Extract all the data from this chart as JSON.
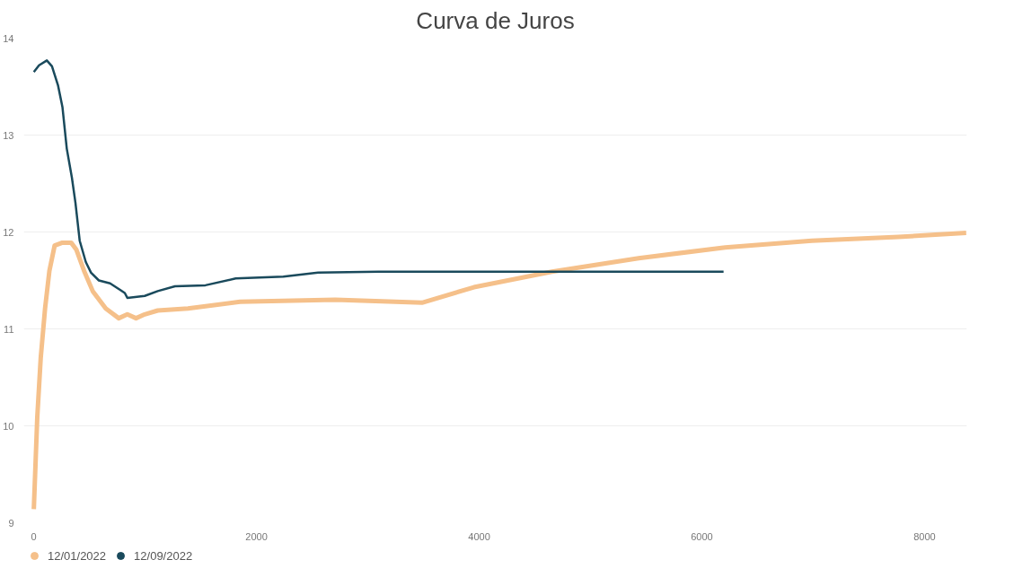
{
  "chart_data": {
    "type": "line",
    "title": "Curva de Juros",
    "xlim": [
      -90,
      8380
    ],
    "ylim": [
      9,
      14
    ],
    "xticks": [
      0,
      2000,
      4000,
      6000,
      8000
    ],
    "yticks": [
      9,
      10,
      11,
      12,
      13,
      14
    ],
    "grid": "y",
    "legend": "bottom left",
    "line_style": "solid",
    "marker": "none",
    "series": [
      {
        "name": "12/01/2022",
        "color": "#f5c08a",
        "x": [
          0,
          31,
          62,
          101,
          140,
          187,
          257,
          335,
          381,
          451,
          529,
          646,
          763,
          840,
          918,
          996,
          1113,
          1385,
          1852,
          2708,
          3486,
          3953,
          4654,
          5432,
          6210,
          6988,
          7767,
          8374
        ],
        "values": [
          9.14,
          10.09,
          10.7,
          11.21,
          11.6,
          11.86,
          11.89,
          11.89,
          11.82,
          11.6,
          11.39,
          11.21,
          11.11,
          11.15,
          11.11,
          11.15,
          11.19,
          11.21,
          11.28,
          11.3,
          11.27,
          11.43,
          11.59,
          11.73,
          11.84,
          11.91,
          11.95,
          11.99
        ]
      },
      {
        "name": "12/09/2022",
        "color": "#1a4a5c",
        "x": [
          0,
          47,
          117,
          163,
          218,
          257,
          296,
          342,
          374,
          412,
          467,
          514,
          584,
          685,
          778,
          817,
          840,
          996,
          1113,
          1268,
          1541,
          1813,
          2241,
          2553,
          3097,
          6195
        ],
        "values": [
          13.65,
          13.72,
          13.77,
          13.71,
          13.51,
          13.29,
          12.86,
          12.56,
          12.3,
          11.91,
          11.69,
          11.58,
          11.5,
          11.47,
          11.4,
          11.37,
          11.32,
          11.34,
          11.39,
          11.44,
          11.45,
          11.52,
          11.54,
          11.58,
          11.59,
          11.59
        ]
      }
    ]
  }
}
